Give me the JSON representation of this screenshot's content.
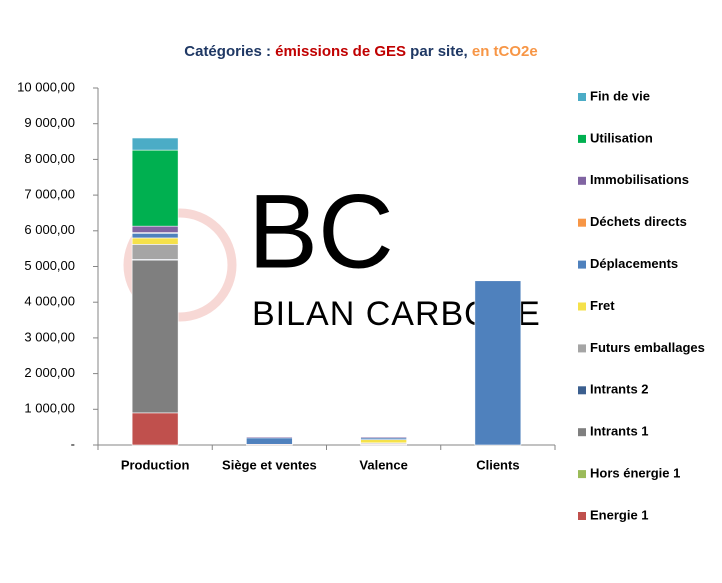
{
  "chart_data": {
    "type": "stacked_bar",
    "title": [
      "Catégories : ",
      "émissions de GES",
      " par site, ",
      "en tCO2e"
    ],
    "title_colors": [
      "#1f3864",
      "#c00000",
      "#1f3864",
      "#f79646"
    ],
    "watermark": [
      "BC",
      "BILAN CARBONE"
    ],
    "categories": [
      "Production",
      "Siège et ventes",
      "Valence",
      "Clients"
    ],
    "series": [
      {
        "name": "Energie 1",
        "color": "#c0504d",
        "values": [
          900,
          20,
          20,
          0
        ]
      },
      {
        "name": "Hors énergie 1",
        "color": "#9bbb59",
        "values": [
          0,
          0,
          0,
          0
        ]
      },
      {
        "name": "Intrants 1",
        "color": "#7f7f7f",
        "values": [
          4280,
          0,
          10,
          0
        ]
      },
      {
        "name": "Intrants 2",
        "color": "#3b5f8f",
        "values": [
          20,
          0,
          0,
          0
        ]
      },
      {
        "name": "Futurs emballages",
        "color": "#a5a5a5",
        "values": [
          420,
          0,
          30,
          0
        ]
      },
      {
        "name": "Fret",
        "color": "#f5e14a",
        "values": [
          180,
          0,
          90,
          0
        ]
      },
      {
        "name": "Déplacements",
        "color": "#4f81bd",
        "values": [
          130,
          180,
          50,
          4600
        ]
      },
      {
        "name": "Déchets directs",
        "color": "#f79646",
        "values": [
          20,
          0,
          0,
          0
        ]
      },
      {
        "name": "Immobilisations",
        "color": "#8064a2",
        "values": [
          180,
          30,
          30,
          0
        ]
      },
      {
        "name": "Utilisation",
        "color": "#00b050",
        "values": [
          2130,
          0,
          0,
          0
        ]
      },
      {
        "name": "Fin de vie",
        "color": "#4bacc6",
        "values": [
          340,
          0,
          0,
          0
        ]
      }
    ],
    "ylim": [
      0,
      10000
    ],
    "yticks": [
      {
        "value": 0,
        "label": "-"
      },
      {
        "value": 1000,
        "label": "1 000,00"
      },
      {
        "value": 2000,
        "label": "2 000,00"
      },
      {
        "value": 3000,
        "label": "3 000,00"
      },
      {
        "value": 4000,
        "label": "4 000,00"
      },
      {
        "value": 5000,
        "label": "5 000,00"
      },
      {
        "value": 6000,
        "label": "6 000,00"
      },
      {
        "value": 7000,
        "label": "7 000,00"
      },
      {
        "value": 8000,
        "label": "8 000,00"
      },
      {
        "value": 9000,
        "label": "9 000,00"
      },
      {
        "value": 10000,
        "label": "10 000,00"
      }
    ],
    "legend": "right"
  }
}
